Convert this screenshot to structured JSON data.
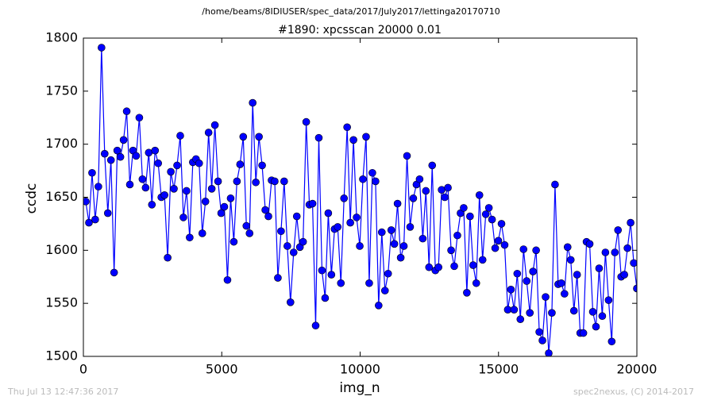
{
  "chart_data": {
    "type": "line",
    "suptitle": "/home/beams/8IDIUSER/spec_data/2017/July2017/lettinga20170710",
    "title": "#1890: xpcsscan 20000 0.01",
    "xlabel": "img_n",
    "ylabel": "ccdc",
    "footer_left": "Thu Jul 13 12:47:36 2017",
    "footer_right": "spec2nexus, (C) 2014-2017",
    "xlim": [
      0,
      20000
    ],
    "ylim": [
      1500,
      1800
    ],
    "xticks": [
      0,
      5000,
      10000,
      15000,
      20000
    ],
    "yticks": [
      1500,
      1550,
      1600,
      1650,
      1700,
      1750,
      1800
    ],
    "x": [
      86,
      200,
      314,
      427,
      541,
      655,
      769,
      883,
      996,
      1110,
      1224,
      1338,
      1452,
      1565,
      1679,
      1793,
      1907,
      2021,
      2134,
      2248,
      2362,
      2476,
      2590,
      2703,
      2817,
      2931,
      3045,
      3159,
      3272,
      3386,
      3500,
      3614,
      3728,
      3841,
      3955,
      4069,
      4183,
      4297,
      4410,
      4524,
      4638,
      4752,
      4866,
      4979,
      5093,
      5207,
      5321,
      5435,
      5548,
      5662,
      5776,
      5890,
      6004,
      6117,
      6231,
      6345,
      6459,
      6573,
      6686,
      6800,
      6914,
      7028,
      7142,
      7255,
      7369,
      7483,
      7597,
      7711,
      7824,
      7938,
      8052,
      8166,
      8280,
      8393,
      8507,
      8621,
      8735,
      8849,
      8962,
      9076,
      9190,
      9304,
      9418,
      9531,
      9645,
      9759,
      9873,
      9987,
      10100,
      10214,
      10328,
      10442,
      10556,
      10669,
      10783,
      10897,
      11011,
      11125,
      11238,
      11352,
      11466,
      11580,
      11694,
      11807,
      11921,
      12035,
      12149,
      12263,
      12376,
      12490,
      12604,
      12718,
      12832,
      12945,
      13059,
      13173,
      13287,
      13401,
      13514,
      13628,
      13742,
      13856,
      13970,
      14083,
      14197,
      14311,
      14425,
      14539,
      14652,
      14766,
      14880,
      14994,
      15108,
      15221,
      15335,
      15449,
      15563,
      15677,
      15790,
      15904,
      16018,
      16132,
      16246,
      16359,
      16473,
      16587,
      16701,
      16815,
      16928,
      17042,
      17156,
      17270,
      17384,
      17497,
      17611,
      17725,
      17839,
      17953,
      18066,
      18180,
      18294,
      18408,
      18522,
      18635,
      18749,
      18863,
      18977,
      19091,
      19204,
      19318,
      19432,
      19546,
      19660,
      19773,
      19887,
      20000
    ],
    "series": [
      {
        "name": "ccdc",
        "color": "#0000ff",
        "values": [
          1646,
          1626,
          1673,
          1629,
          1660,
          1791,
          1691,
          1635,
          1685,
          1579,
          1694,
          1688,
          1704,
          1731,
          1662,
          1694,
          1689,
          1725,
          1667,
          1659,
          1692,
          1643,
          1694,
          1682,
          1650,
          1652,
          1593,
          1674,
          1658,
          1680,
          1708,
          1631,
          1656,
          1612,
          1683,
          1686,
          1682,
          1616,
          1646,
          1711,
          1658,
          1718,
          1665,
          1635,
          1641,
          1572,
          1649,
          1608,
          1665,
          1681,
          1707,
          1623,
          1616,
          1739,
          1664,
          1707,
          1680,
          1638,
          1632,
          1666,
          1665,
          1574,
          1618,
          1665,
          1604,
          1551,
          1598,
          1632,
          1603,
          1608,
          1721,
          1643,
          1644,
          1529,
          1706,
          1581,
          1555,
          1635,
          1577,
          1620,
          1622,
          1569,
          1649,
          1716,
          1626,
          1704,
          1631,
          1604,
          1667,
          1707,
          1569,
          1673,
          1665,
          1548,
          1617,
          1562,
          1578,
          1619,
          1606,
          1644,
          1593,
          1604,
          1689,
          1622,
          1649,
          1662,
          1667,
          1611,
          1656,
          1584,
          1680,
          1581,
          1584,
          1657,
          1650,
          1659,
          1600,
          1585,
          1614,
          1635,
          1640,
          1560,
          1632,
          1586,
          1569,
          1652,
          1591,
          1634,
          1640,
          1629,
          1602,
          1609,
          1625,
          1605,
          1544,
          1563,
          1544,
          1578,
          1535,
          1601,
          1571,
          1541,
          1580,
          1600,
          1523,
          1515,
          1556,
          1503,
          1541,
          1662,
          1568,
          1569,
          1559,
          1603,
          1591,
          1543,
          1577,
          1522,
          1522,
          1608,
          1606,
          1542,
          1528,
          1583,
          1538,
          1598,
          1553,
          1514,
          1598,
          1619,
          1575,
          1577,
          1602,
          1626,
          1588,
          1564
        ]
      }
    ]
  }
}
